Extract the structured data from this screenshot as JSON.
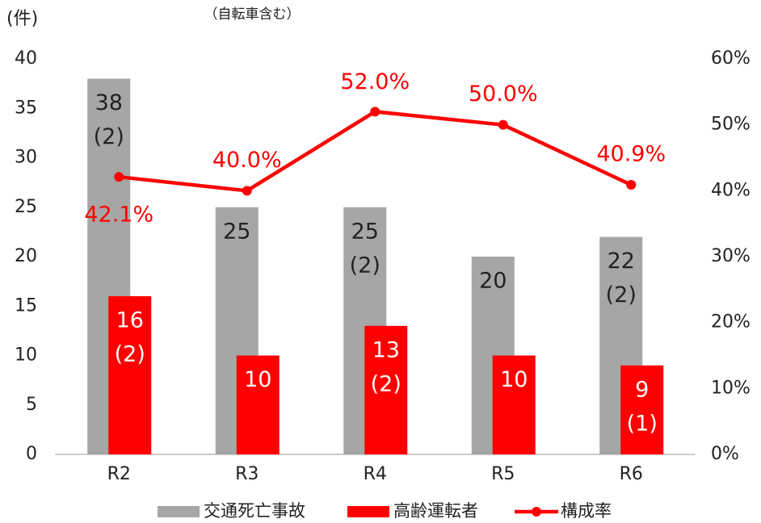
{
  "chart_data": {
    "type": "bar_line",
    "y_axis_label": "(件)",
    "annotation": "（自転車含む）",
    "categories": [
      "R2",
      "R3",
      "R4",
      "R5",
      "R6"
    ],
    "series": [
      {
        "name": "交通死亡事故",
        "color": "#a6a6a6",
        "values": [
          38,
          25,
          25,
          20,
          22
        ],
        "sub_labels": [
          "(2)",
          null,
          "(2)",
          null,
          "(2)"
        ]
      },
      {
        "name": "高齢運転者",
        "color": "#ff0000",
        "values": [
          16,
          10,
          13,
          10,
          9
        ],
        "sub_labels": [
          "(2)",
          null,
          "(2)",
          null,
          "(1)"
        ]
      },
      {
        "name": "構成率",
        "color": "#ff0000",
        "type": "line",
        "axis": "y2",
        "values": [
          42.1,
          40.0,
          52.0,
          50.0,
          40.9
        ],
        "value_labels": [
          "42.1%",
          "40.0%",
          "52.0%",
          "50.0%",
          "40.9%"
        ]
      }
    ],
    "ylim": [
      0,
      40
    ],
    "yticks": [
      0,
      5,
      10,
      15,
      20,
      25,
      30,
      35,
      40
    ],
    "y2lim": [
      0,
      60
    ],
    "y2ticks": [
      {
        "value": 0,
        "label": "0%"
      },
      {
        "value": 10,
        "label": "10%"
      },
      {
        "value": 20,
        "label": "20%"
      },
      {
        "value": 30,
        "label": "30%"
      },
      {
        "value": 40,
        "label": "40%"
      },
      {
        "value": 50,
        "label": "50%"
      },
      {
        "value": 60,
        "label": "60%"
      }
    ],
    "legend": "bottom"
  }
}
